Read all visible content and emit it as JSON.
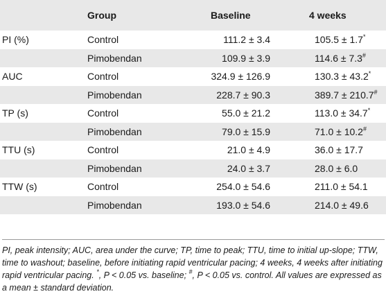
{
  "header": {
    "col0": "",
    "col1": "Group",
    "col2": "Baseline",
    "col3": "4 weeks"
  },
  "rows": [
    {
      "param": "PI (%)",
      "group": "Control",
      "baseline": "111.2 ± 3.4",
      "weeks4": "105.5 ± 1.7",
      "weeks4_sup": "*"
    },
    {
      "param": "",
      "group": "Pimobendan",
      "baseline": "109.9 ± 3.9",
      "weeks4": "114.6 ± 7.3",
      "weeks4_sup": "#"
    },
    {
      "param": "AUC",
      "group": "Control",
      "baseline": "324.9 ± 126.9",
      "weeks4": "130.3 ± 43.2",
      "weeks4_sup": "*"
    },
    {
      "param": "",
      "group": "Pimobendan",
      "baseline": "228.7 ± 90.3",
      "weeks4": "389.7 ± 210.7",
      "weeks4_sup": "#"
    },
    {
      "param": "TP (s)",
      "group": "Control",
      "baseline": "55.0 ± 21.2",
      "weeks4": "113.0 ± 34.7",
      "weeks4_sup": "*"
    },
    {
      "param": "",
      "group": "Pimobendan",
      "baseline": "79.0 ± 15.9",
      "weeks4": "71.0 ± 10.2",
      "weeks4_sup": "#"
    },
    {
      "param": "TTU (s)",
      "group": "Control",
      "baseline": "21.0 ± 4.9",
      "weeks4": "36.0 ± 17.7",
      "weeks4_sup": ""
    },
    {
      "param": "",
      "group": "Pimobendan",
      "baseline": "24.0 ± 3.7",
      "weeks4": "28.0 ± 6.0",
      "weeks4_sup": ""
    },
    {
      "param": "TTW (s)",
      "group": "Control",
      "baseline": "254.0 ± 54.6",
      "weeks4": "211.0 ± 54.1",
      "weeks4_sup": ""
    },
    {
      "param": "",
      "group": "Pimobendan",
      "baseline": "193.0 ± 54.6",
      "weeks4": "214.0 ± 49.6",
      "weeks4_sup": ""
    }
  ],
  "footnote": {
    "text_a": "PI, peak intensity; AUC, area under the curve; TP, time to peak; TTU, time to initial up-slope; TTW, time to washout; baseline, before initiating rapid ventricular pacing; 4 weeks, 4 weeks after initiating rapid ventricular pacing. ",
    "star": "*",
    "text_b": ", P < 0.05 vs. baseline; ",
    "hash": "#",
    "text_c": ", P < 0.05 vs. control. All values are expressed as a mean ± standard deviation."
  }
}
